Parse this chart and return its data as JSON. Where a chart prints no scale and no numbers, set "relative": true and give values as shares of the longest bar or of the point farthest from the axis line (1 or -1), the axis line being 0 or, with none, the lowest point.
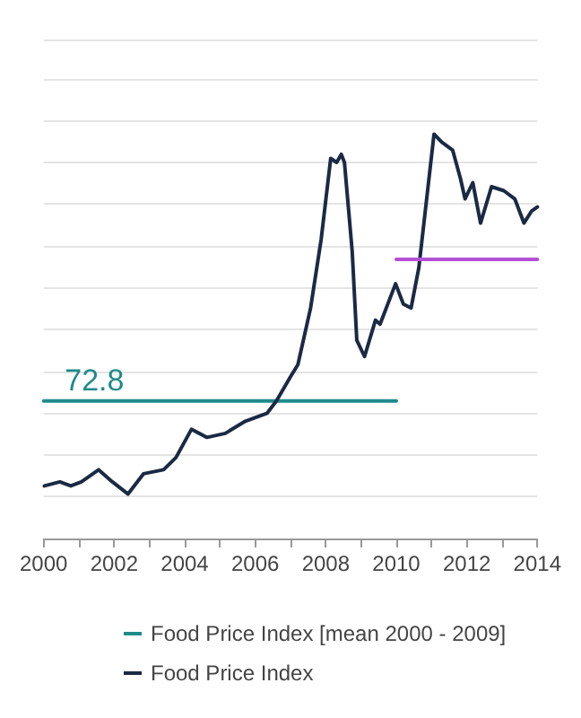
{
  "chart_data": {
    "type": "line",
    "relative": true,
    "grid": "y",
    "legend": "bottom",
    "marker": "none",
    "line_style": "solid",
    "xlim": [
      2000,
      2014
    ],
    "xticks": [
      2000,
      {
        "value": 2001,
        "label": null
      },
      2002,
      {
        "value": 2003,
        "label": null
      },
      2004,
      {
        "value": 2005,
        "label": null
      },
      2006,
      {
        "value": 2007,
        "label": null
      },
      2008,
      {
        "value": 2009,
        "label": null
      },
      2010,
      {
        "value": 2011,
        "label": null
      },
      2012,
      {
        "value": 2013,
        "label": null
      },
      2014
    ],
    "series": [
      {
        "name": "Food Price Index [mean 2000 - 2009]",
        "color": "#1e8a8a",
        "x": [
          2000,
          2010
        ],
        "values": [
          0.34,
          0.34
        ]
      },
      {
        "name": "Food Price Index",
        "color": "#1b2a44",
        "x": [
          2000.02,
          2000.46,
          2000.77,
          2001.07,
          2001.56,
          2001.95,
          2002.39,
          2002.83,
          2003.4,
          2003.75,
          2004.19,
          2004.63,
          2005.15,
          2005.72,
          2006.34,
          2006.6,
          2007.0,
          2007.21,
          2007.57,
          2007.87,
          2008.14,
          2008.31,
          2008.44,
          2008.53,
          2008.75,
          2008.88,
          2009.1,
          2009.41,
          2009.54,
          2009.98,
          2010.2,
          2010.42,
          2010.64,
          2011.07,
          2011.29,
          2011.6,
          2011.82,
          2011.95,
          2012.17,
          2012.39,
          2012.7,
          2013.05,
          2013.36,
          2013.62,
          2013.84,
          2014.0
        ],
        "values": [
          0.13,
          0.14,
          0.13,
          0.14,
          0.17,
          0.14,
          0.11,
          0.16,
          0.17,
          0.2,
          0.27,
          0.25,
          0.26,
          0.29,
          0.31,
          0.34,
          0.4,
          0.43,
          0.57,
          0.74,
          0.94,
          0.93,
          0.95,
          0.93,
          0.71,
          0.49,
          0.45,
          0.54,
          0.53,
          0.63,
          0.58,
          0.57,
          0.67,
          1.0,
          0.98,
          0.96,
          0.89,
          0.84,
          0.88,
          0.78,
          0.87,
          0.86,
          0.84,
          0.78,
          0.81,
          0.82
        ]
      },
      {
        "color": "#b44fd6",
        "x": [
          2010,
          2014
        ],
        "values": [
          0.69,
          0.69
        ]
      }
    ],
    "annotations": [
      {
        "text": "72.8",
        "x": 2000.6,
        "y": 0.34
      }
    ]
  }
}
